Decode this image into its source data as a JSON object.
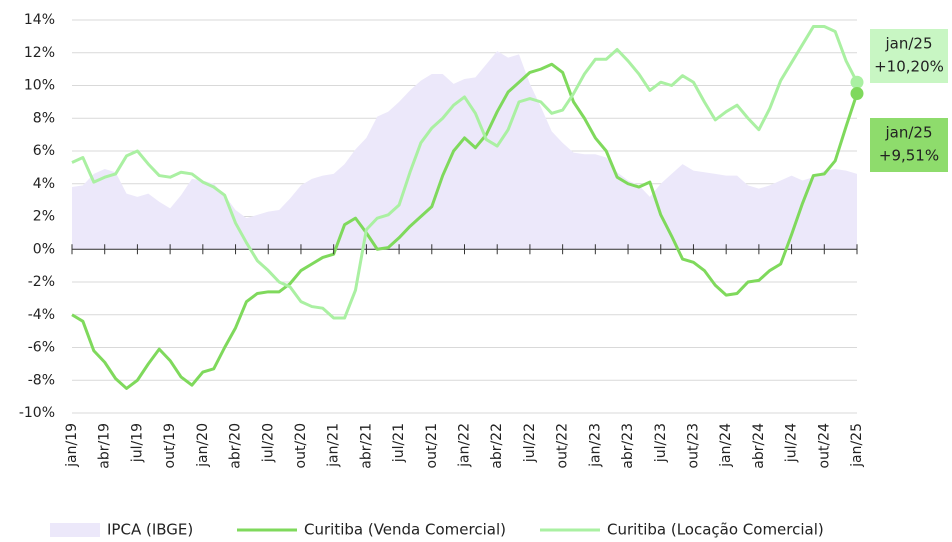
{
  "chart_data": {
    "type": "line",
    "categories": [
      "jan/19",
      null,
      null,
      "abr/19",
      null,
      null,
      "jul/19",
      null,
      null,
      "out/19",
      null,
      null,
      "jan/20",
      null,
      null,
      "abr/20",
      null,
      null,
      "jul/20",
      null,
      null,
      "out/20",
      null,
      null,
      "jan/21",
      null,
      null,
      "abr/21",
      null,
      null,
      "jul/21",
      null,
      null,
      "out/21",
      null,
      null,
      "jan/22",
      null,
      null,
      "abr/22",
      null,
      null,
      "jul/22",
      null,
      null,
      "out/22",
      null,
      null,
      "jan/23",
      null,
      null,
      "abr/23",
      null,
      null,
      "jul/23",
      null,
      null,
      "out/23",
      null,
      null,
      "jan/24",
      null,
      null,
      "abr/24",
      null,
      null,
      "jul/24",
      null,
      null,
      "out/24",
      null,
      null,
      "jan/25"
    ],
    "series": [
      {
        "name": "IPCA (IBGE)",
        "kind": "area",
        "color": "#ece8fa",
        "values": [
          3.8,
          3.9,
          4.6,
          4.9,
          4.7,
          3.4,
          3.2,
          3.4,
          2.9,
          2.5,
          3.3,
          4.3,
          4.2,
          4.0,
          3.3,
          2.4,
          1.9,
          2.1,
          2.3,
          2.4,
          3.1,
          3.9,
          4.3,
          4.5,
          4.6,
          5.2,
          6.1,
          6.8,
          8.1,
          8.4,
          9.0,
          9.7,
          10.3,
          10.7,
          10.7,
          10.1,
          10.4,
          10.5,
          11.3,
          12.1,
          11.7,
          11.9,
          10.1,
          8.7,
          7.2,
          6.5,
          5.9,
          5.8,
          5.8,
          5.6,
          4.7,
          4.2,
          3.9,
          3.2,
          4.0,
          4.6,
          5.2,
          4.8,
          4.7,
          4.6,
          4.5,
          4.5,
          3.9,
          3.7,
          3.9,
          4.2,
          4.5,
          4.2,
          4.4,
          4.8,
          4.9,
          4.8,
          4.6
        ]
      },
      {
        "name": "Curitiba (Venda Comercial)",
        "kind": "line",
        "color": "#7fd95c",
        "values": [
          -4.0,
          -4.4,
          -6.2,
          -6.9,
          -7.9,
          -8.5,
          -8.0,
          -7.0,
          -6.1,
          -6.8,
          -7.8,
          -8.3,
          -7.5,
          -7.3,
          -6.0,
          -4.8,
          -3.2,
          -2.7,
          -2.6,
          -2.6,
          -2.1,
          -1.3,
          -0.9,
          -0.5,
          -0.3,
          1.5,
          1.9,
          1.0,
          0.0,
          0.1,
          0.7,
          1.4,
          2.0,
          2.6,
          4.5,
          6.0,
          6.8,
          6.2,
          7.0,
          8.4,
          9.6,
          10.2,
          10.8,
          11.0,
          11.3,
          10.8,
          9.0,
          8.0,
          6.8,
          6.0,
          4.4,
          4.0,
          3.8,
          4.1,
          2.1,
          0.8,
          -0.6,
          -0.8,
          -1.3,
          -2.2,
          -2.8,
          -2.7,
          -2.0,
          -1.9,
          -1.3,
          -0.9,
          0.9,
          2.8,
          4.5,
          4.6,
          5.4,
          7.5,
          9.51
        ]
      },
      {
        "name": "Curitiba (Locação Comercial)",
        "kind": "line",
        "color": "#aaf0a2",
        "values": [
          5.3,
          5.6,
          4.1,
          4.4,
          4.6,
          5.7,
          6.0,
          5.2,
          4.5,
          4.4,
          4.7,
          4.6,
          4.1,
          3.8,
          3.3,
          1.6,
          0.4,
          -0.7,
          -1.3,
          -2.0,
          -2.3,
          -3.2,
          -3.5,
          -3.6,
          -4.2,
          -4.2,
          -2.5,
          1.2,
          1.9,
          2.1,
          2.7,
          4.7,
          6.5,
          7.4,
          8.0,
          8.8,
          9.3,
          8.3,
          6.7,
          6.3,
          7.3,
          9.0,
          9.2,
          9.0,
          8.3,
          8.5,
          9.5,
          10.7,
          11.6,
          11.6,
          12.2,
          11.5,
          10.7,
          9.7,
          10.2,
          10.0,
          10.6,
          10.2,
          9.0,
          7.9,
          8.4,
          8.8,
          8.0,
          7.3,
          8.6,
          10.3,
          11.4,
          12.5,
          13.6,
          13.6,
          13.3,
          11.5,
          10.2
        ]
      }
    ],
    "annotations": [
      {
        "series": 2,
        "lines": [
          "jan/25",
          "+10,20%"
        ],
        "color": "#c8f6c3"
      },
      {
        "series": 1,
        "lines": [
          "jan/25",
          "+9,51%"
        ],
        "color": "#8edc6c"
      }
    ],
    "ylim": [
      -10,
      14
    ],
    "yticks": [
      {
        "value": -10,
        "label": "-10%"
      },
      {
        "value": -8,
        "label": "-8%"
      },
      {
        "value": -6,
        "label": "-6%"
      },
      {
        "value": -4,
        "label": "-4%"
      },
      {
        "value": -2,
        "label": "-2%"
      },
      {
        "value": 0,
        "label": "0%"
      },
      {
        "value": 2,
        "label": "2%"
      },
      {
        "value": 4,
        "label": "4%"
      },
      {
        "value": 6,
        "label": "6%"
      },
      {
        "value": 8,
        "label": "8%"
      },
      {
        "value": 10,
        "label": "10%"
      },
      {
        "value": 12,
        "label": "12%"
      },
      {
        "value": 14,
        "label": "14%"
      }
    ],
    "grid": true
  }
}
